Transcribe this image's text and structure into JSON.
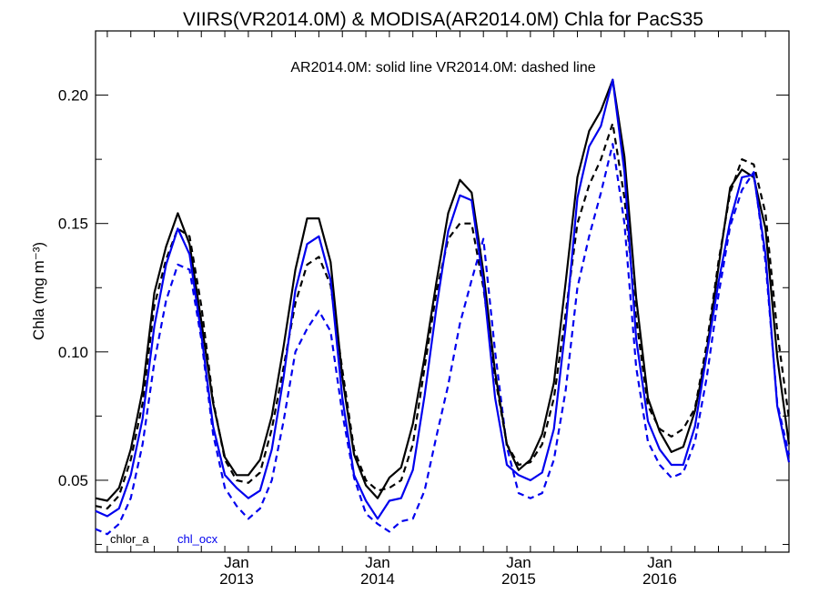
{
  "colors": {
    "chlor_a": "#000000",
    "chl_ocx": "#0000ee"
  },
  "chart_data": {
    "type": "line",
    "title": "VIIRS(VR2014.0M) & MODISA(AR2014.0M)  Chla for PacS35",
    "annotation": "AR2014.0M: solid line   VR2014.0M: dashed line",
    "ylabel": "Chla (mg m⁻³)",
    "xlabel": "",
    "ylim": [
      0.022,
      0.225
    ],
    "xlim": [
      "2012-01",
      "2016-12"
    ],
    "yticks": [
      "0.05",
      "0.10",
      "0.15",
      "0.20"
    ],
    "xticks": [
      {
        "month": "Jan",
        "year": "2013",
        "x": "2013-01"
      },
      {
        "month": "Jan",
        "year": "2014",
        "x": "2014-01"
      },
      {
        "month": "Jan",
        "year": "2015",
        "x": "2015-01"
      },
      {
        "month": "Jan",
        "year": "2016",
        "x": "2016-01"
      }
    ],
    "legend": {
      "placement": "bottom-left",
      "entries": [
        "chlor_a",
        "chl_ocx"
      ]
    },
    "x": [
      "2012-01",
      "2012-02",
      "2012-03",
      "2012-04",
      "2012-05",
      "2012-06",
      "2012-07",
      "2012-08",
      "2012-09",
      "2012-10",
      "2012-11",
      "2012-12",
      "2013-01",
      "2013-02",
      "2013-03",
      "2013-04",
      "2013-05",
      "2013-06",
      "2013-07",
      "2013-08",
      "2013-09",
      "2013-10",
      "2013-11",
      "2013-12",
      "2014-01",
      "2014-02",
      "2014-03",
      "2014-04",
      "2014-05",
      "2014-06",
      "2014-07",
      "2014-08",
      "2014-09",
      "2014-10",
      "2014-11",
      "2014-12",
      "2015-01",
      "2015-02",
      "2015-03",
      "2015-04",
      "2015-05",
      "2015-06",
      "2015-07",
      "2015-08",
      "2015-09",
      "2015-10",
      "2015-11",
      "2015-12",
      "2016-01",
      "2016-02",
      "2016-03",
      "2016-04",
      "2016-05",
      "2016-06",
      "2016-07",
      "2016-08",
      "2016-09",
      "2016-10",
      "2016-11",
      "2016-12"
    ],
    "series": [
      {
        "name": "chlor_a",
        "product": "AR2014.0M",
        "color": "#000000",
        "dash": false,
        "values": [
          0.043,
          0.042,
          0.047,
          0.062,
          0.085,
          0.123,
          0.141,
          0.154,
          0.142,
          0.112,
          0.08,
          0.059,
          0.052,
          0.052,
          0.058,
          0.075,
          0.102,
          0.132,
          0.152,
          0.152,
          0.135,
          0.09,
          0.06,
          0.048,
          0.043,
          0.051,
          0.055,
          0.072,
          0.098,
          0.127,
          0.154,
          0.167,
          0.162,
          0.131,
          0.092,
          0.064,
          0.054,
          0.058,
          0.068,
          0.088,
          0.127,
          0.168,
          0.186,
          0.194,
          0.206,
          0.176,
          0.121,
          0.082,
          0.069,
          0.061,
          0.063,
          0.077,
          0.1,
          0.133,
          0.164,
          0.171,
          0.168,
          0.148,
          0.098,
          0.064
        ]
      },
      {
        "name": "chl_ocx",
        "product": "AR2014.0M",
        "color": "#0000ee",
        "dash": false,
        "values": [
          0.038,
          0.036,
          0.039,
          0.052,
          0.074,
          0.11,
          0.134,
          0.148,
          0.138,
          0.107,
          0.071,
          0.052,
          0.047,
          0.043,
          0.046,
          0.062,
          0.09,
          0.124,
          0.142,
          0.145,
          0.128,
          0.082,
          0.052,
          0.042,
          0.035,
          0.042,
          0.043,
          0.054,
          0.083,
          0.117,
          0.147,
          0.161,
          0.159,
          0.127,
          0.082,
          0.056,
          0.052,
          0.05,
          0.053,
          0.07,
          0.11,
          0.16,
          0.18,
          0.188,
          0.206,
          0.17,
          0.105,
          0.073,
          0.062,
          0.056,
          0.056,
          0.071,
          0.099,
          0.127,
          0.151,
          0.168,
          0.169,
          0.138,
          0.079,
          0.057
        ]
      },
      {
        "name": "chlor_a",
        "product": "VR2014.0M",
        "color": "#000000",
        "dash": true,
        "values": [
          0.04,
          0.039,
          0.044,
          0.058,
          0.08,
          0.118,
          0.136,
          0.148,
          0.145,
          0.118,
          0.081,
          0.058,
          0.05,
          0.049,
          0.053,
          0.07,
          0.094,
          0.119,
          0.134,
          0.137,
          0.126,
          0.093,
          0.062,
          0.05,
          0.046,
          0.047,
          0.05,
          0.064,
          0.094,
          0.123,
          0.144,
          0.15,
          0.15,
          0.125,
          0.09,
          0.064,
          0.056,
          0.057,
          0.064,
          0.082,
          0.115,
          0.15,
          0.165,
          0.175,
          0.189,
          0.16,
          0.113,
          0.079,
          0.07,
          0.067,
          0.07,
          0.078,
          0.103,
          0.135,
          0.162,
          0.175,
          0.173,
          0.154,
          0.108,
          0.074
        ]
      },
      {
        "name": "chl_ocx",
        "product": "VR2014.0M",
        "color": "#0000ee",
        "dash": true,
        "values": [
          0.031,
          0.029,
          0.033,
          0.043,
          0.064,
          0.096,
          0.12,
          0.134,
          0.132,
          0.105,
          0.068,
          0.047,
          0.04,
          0.035,
          0.039,
          0.05,
          0.073,
          0.1,
          0.109,
          0.116,
          0.108,
          0.076,
          0.051,
          0.037,
          0.033,
          0.03,
          0.034,
          0.035,
          0.046,
          0.067,
          0.087,
          0.111,
          0.128,
          0.144,
          0.1,
          0.063,
          0.045,
          0.043,
          0.045,
          0.058,
          0.085,
          0.125,
          0.145,
          0.162,
          0.181,
          0.15,
          0.094,
          0.065,
          0.056,
          0.051,
          0.053,
          0.065,
          0.09,
          0.122,
          0.149,
          0.163,
          0.17,
          0.135,
          0.08,
          0.06
        ]
      }
    ]
  }
}
